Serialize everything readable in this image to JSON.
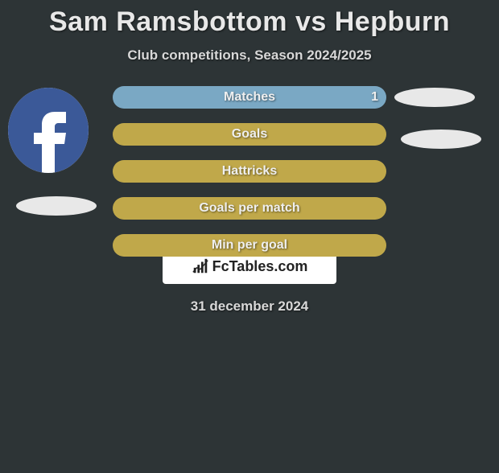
{
  "title": "Sam Ramsbottom vs Hepburn",
  "subtitle": "Club competitions, Season 2024/2025",
  "date": "31 december 2024",
  "watermark": "FcTables.com",
  "background_color": "#2d3436",
  "text_color": "#e8e8e8",
  "namebar_color": "#e8e8e8",
  "rows": [
    {
      "label": "Matches",
      "value_left": null,
      "value_right": "1",
      "bg": "#c0a84a",
      "fill_width": 1.0,
      "fill_color": "#7aa8c4"
    },
    {
      "label": "Goals",
      "value_left": null,
      "value_right": null,
      "bg": "#c0a84a",
      "fill_width": 0.0,
      "fill_color": "#7aa8c4"
    },
    {
      "label": "Hattricks",
      "value_left": null,
      "value_right": null,
      "bg": "#c0a84a",
      "fill_width": 0.0,
      "fill_color": "#7aa8c4"
    },
    {
      "label": "Goals per match",
      "value_left": null,
      "value_right": null,
      "bg": "#c0a84a",
      "fill_width": 0.0,
      "fill_color": "#7aa8c4"
    },
    {
      "label": "Min per goal",
      "value_left": null,
      "value_right": null,
      "bg": "#c0a84a",
      "fill_width": 0.0,
      "fill_color": "#7aa8c4"
    }
  ],
  "avatar_left": {
    "type": "facebook-placeholder",
    "bg": "#3b5998",
    "fg": "#ffffff"
  }
}
